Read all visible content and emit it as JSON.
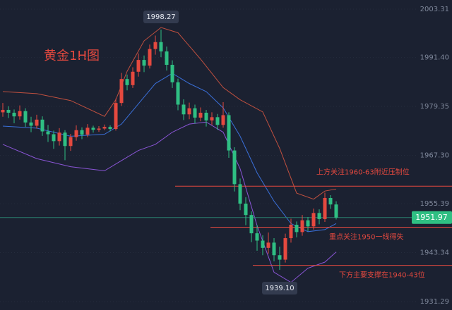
{
  "title": "黄金1H图",
  "chart_data": {
    "type": "candlestick",
    "up_color": "#e5493f",
    "down_color": "#2fbf83",
    "open": [
      1977.9,
      1978.5,
      1977.8,
      1976.9,
      1978.2,
      1975.4,
      1974.6,
      1976.1,
      1973.2,
      1972.5,
      1970.8,
      1972.9,
      1969.6,
      1971.8,
      1973.5,
      1972.4,
      1974.1,
      1973.6,
      1973.9,
      1974.3,
      1973.8,
      1980.2,
      1986.1,
      1984.6,
      1987.9,
      1990.8,
      1989.4,
      1993.5,
      1995.2,
      1992.9,
      1989.6,
      1985.3,
      1979.8,
      1977.4,
      1978.9,
      1976.6,
      1977.8,
      1975.9,
      1976.7,
      1974.8,
      1977.2,
      1968.5,
      1960.2,
      1955.4,
      1952.6,
      1948.1,
      1946.3,
      1944.5,
      1945.8,
      1942.7,
      1941.6,
      1946.9,
      1950.2,
      1948.4,
      1951.3,
      1949.8,
      1953.1,
      1951.6,
      1956.8,
      1955.2
    ],
    "high": [
      1980.2,
      1979.4,
      1978.6,
      1979.6,
      1978.9,
      1976.8,
      1977.3,
      1976.9,
      1974.8,
      1973.4,
      1974.0,
      1973.5,
      1972.6,
      1974.7,
      1974.2,
      1975.0,
      1974.6,
      1974.5,
      1974.9,
      1974.7,
      1981.3,
      1987.6,
      1987.2,
      1989.0,
      1992.4,
      1991.9,
      1994.6,
      1996.8,
      1998.27,
      1994.1,
      1990.7,
      1986.2,
      1981.1,
      1980.3,
      1979.8,
      1979.1,
      1978.5,
      1977.9,
      1977.5,
      1980.4,
      1977.9,
      1969.3,
      1961.6,
      1957.0,
      1953.5,
      1950.2,
      1947.6,
      1948.3,
      1946.9,
      1944.8,
      1948.0,
      1951.7,
      1951.0,
      1952.6,
      1952.1,
      1954.2,
      1954.0,
      1958.1,
      1957.5,
      1956.0
    ],
    "low": [
      1976.8,
      1976.5,
      1975.2,
      1976.1,
      1974.3,
      1973.0,
      1973.9,
      1972.1,
      1970.6,
      1968.9,
      1969.7,
      1966.1,
      1968.4,
      1970.9,
      1971.3,
      1971.8,
      1972.9,
      1973.1,
      1973.5,
      1973.2,
      1973.4,
      1979.5,
      1983.3,
      1983.9,
      1986.7,
      1987.8,
      1988.7,
      1992.1,
      1991.5,
      1988.2,
      1983.9,
      1978.4,
      1976.0,
      1976.2,
      1975.1,
      1975.7,
      1974.4,
      1974.8,
      1973.6,
      1974.1,
      1966.7,
      1958.4,
      1953.8,
      1950.1,
      1945.9,
      1943.8,
      1942.7,
      1943.1,
      1941.2,
      1939.1,
      1940.9,
      1945.8,
      1947.1,
      1947.5,
      1948.6,
      1949.0,
      1950.3,
      1950.9,
      1954.1,
      1951.5
    ],
    "close": [
      1978.5,
      1977.8,
      1976.9,
      1978.2,
      1975.4,
      1974.6,
      1976.1,
      1973.2,
      1972.5,
      1970.8,
      1972.9,
      1969.6,
      1971.8,
      1973.5,
      1972.4,
      1974.1,
      1973.6,
      1973.9,
      1974.3,
      1973.8,
      1980.2,
      1986.1,
      1984.6,
      1987.9,
      1990.8,
      1989.4,
      1993.5,
      1995.2,
      1992.9,
      1989.6,
      1985.3,
      1979.8,
      1977.4,
      1978.9,
      1976.6,
      1977.8,
      1975.9,
      1976.7,
      1974.8,
      1977.2,
      1968.5,
      1960.2,
      1955.4,
      1952.6,
      1948.1,
      1946.3,
      1944.5,
      1945.8,
      1942.7,
      1941.6,
      1946.9,
      1950.2,
      1948.4,
      1951.3,
      1949.8,
      1953.1,
      1951.6,
      1956.8,
      1955.2,
      1951.97
    ],
    "bands": [
      {
        "color": "#c0503f",
        "x": [
          0,
          6,
          12,
          18,
          20,
          22,
          25,
          28,
          31,
          35,
          39,
          42,
          46,
          49,
          52,
          55,
          57,
          59
        ],
        "values": [
          1983.0,
          1982.5,
          1980.8,
          1976.9,
          1981.0,
          1988.0,
          1995.5,
          1998.8,
          1997.5,
          1991.0,
          1984.0,
          1981.0,
          1978.0,
          1969.0,
          1958.0,
          1956.5,
          1958.5,
          1959.0
        ]
      },
      {
        "color": "#3a6fd8",
        "x": [
          0,
          6,
          12,
          18,
          21,
          24,
          27,
          30,
          33,
          36,
          39,
          42,
          45,
          48,
          51,
          54,
          57,
          59
        ],
        "values": [
          1974.5,
          1974.0,
          1972.0,
          1972.5,
          1975.0,
          1980.0,
          1985.0,
          1987.5,
          1985.0,
          1983.0,
          1979.0,
          1972.0,
          1963.0,
          1956.0,
          1950.5,
          1948.5,
          1949.0,
          1950.5
        ]
      },
      {
        "color": "#8a55d6",
        "x": [
          0,
          6,
          12,
          18,
          21,
          24,
          27,
          30,
          33,
          36,
          39,
          42,
          45,
          48,
          51,
          54,
          57,
          59
        ],
        "values": [
          1970.0,
          1966.5,
          1964.5,
          1963.5,
          1966.0,
          1968.5,
          1970.0,
          1973.0,
          1975.0,
          1975.5,
          1973.0,
          1964.0,
          1950.0,
          1938.5,
          1936.0,
          1939.5,
          1941.0,
          1943.5
        ]
      }
    ],
    "callouts": [
      {
        "candle": 28,
        "value": 1998.27
      },
      {
        "candle": 49,
        "value": {
          "value": 1939.1,
          "label": "1939.10"
        }
      }
    ],
    "levels": [
      {
        "value": 1959.7,
        "color": "#e5493f",
        "label": "上方关注1960-63附近压制位"
      },
      {
        "value": 1949.6,
        "color": "#e5493f",
        "label": "重点关注1950一线得失"
      },
      {
        "value": 1940.2,
        "color": "#e5493f",
        "label": "下方主要支撑在1940-43位"
      }
    ],
    "last_color": "#2fbf83",
    "ylim": [
      1929.2,
      2005.57
    ],
    "yticks": [
      1931.29,
      1943.34,
      1955.39,
      {
        "value": 1967.3,
        "label": "1967.30"
      },
      1979.35,
      {
        "value": 1991.4,
        "label": "1991.40"
      },
      2003.31
    ]
  }
}
